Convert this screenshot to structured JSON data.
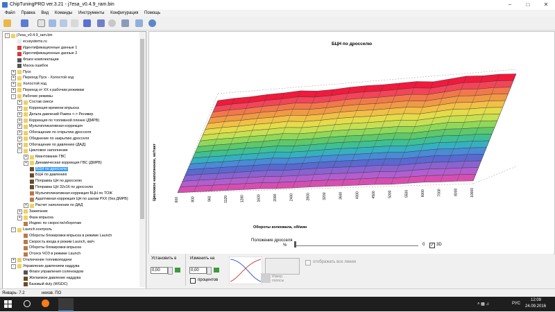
{
  "window": {
    "title": "ChipTuningPRO ver.3.21 - j7esa_v0.4.9_ram.bin"
  },
  "menu": [
    "Файл",
    "Правка",
    "Вид",
    "Команды",
    "Инструменты",
    "Конфигурация",
    "Помощь"
  ],
  "tree": [
    {
      "label": "j7esa_v0.4.9_ram.bin",
      "d": 0,
      "exp": "-",
      "icon": "folder"
    },
    {
      "label": "ecusystems.ru",
      "d": 1,
      "exp": "",
      "icon": "doc"
    },
    {
      "label": "Идентификационные данные 1",
      "d": 1,
      "exp": "",
      "icon": "grid"
    },
    {
      "label": "Идентификационные данные 2",
      "d": 1,
      "exp": "",
      "icon": "grid"
    },
    {
      "label": "Флаги комплектации",
      "d": 1,
      "exp": "",
      "icon": "flag"
    },
    {
      "label": "Маска ошибок",
      "d": 1,
      "exp": "",
      "icon": "flag"
    },
    {
      "label": "Пуск",
      "d": 1,
      "exp": "+",
      "icon": "folder"
    },
    {
      "label": "Переход Пуск - Холостой ход",
      "d": 1,
      "exp": "+",
      "icon": "folder"
    },
    {
      "label": "Холостой ход",
      "d": 1,
      "exp": "+",
      "icon": "folder"
    },
    {
      "label": "Переход от ХХ к рабочим режимам",
      "d": 1,
      "exp": "+",
      "icon": "folder"
    },
    {
      "label": "Рабочие режимы",
      "d": 1,
      "exp": "-",
      "icon": "folder"
    },
    {
      "label": "Состав смеси",
      "d": 2,
      "exp": "+",
      "icon": "folder"
    },
    {
      "label": "Коррекция времени впрыска",
      "d": 2,
      "exp": "+",
      "icon": "folder"
    },
    {
      "label": "Дельта давлений Рампа <-> Ресивер",
      "d": 2,
      "exp": "+",
      "icon": "folder"
    },
    {
      "label": "Коррекция по топливной пленке (ДМРВ)",
      "d": 2,
      "exp": "+",
      "icon": "folder"
    },
    {
      "label": "Мультипликативная коррекция",
      "d": 2,
      "exp": "+",
      "icon": "folder"
    },
    {
      "label": "Обогащение по открытию дросселя",
      "d": 2,
      "exp": "+",
      "icon": "folder"
    },
    {
      "label": "Обеднение по закрытию дросселя",
      "d": 2,
      "exp": "+",
      "icon": "folder"
    },
    {
      "label": "Обогащение по давлению (ДАД)",
      "d": 2,
      "exp": "+",
      "icon": "folder"
    },
    {
      "label": "Цикловое наполнение",
      "d": 2,
      "exp": "-",
      "icon": "folder"
    },
    {
      "label": "Квантование ГВС",
      "d": 3,
      "exp": "+",
      "icon": "folder"
    },
    {
      "label": "Динамическая коррекция ГВС (ДМРВ)",
      "d": 3,
      "exp": "+",
      "icon": "folder"
    },
    {
      "label": "БЦН по дросселю",
      "d": 3,
      "exp": "",
      "icon": "map",
      "selected": true
    },
    {
      "label": "БЦН по давлению",
      "d": 3,
      "exp": "",
      "icon": "map"
    },
    {
      "label": "Поправка ЦН по дросселю",
      "d": 3,
      "exp": "",
      "icon": "map"
    },
    {
      "label": "Поправка ЦН 32х16 по дросселю",
      "d": 3,
      "exp": "",
      "icon": "map"
    },
    {
      "label": "Мультипликативная коррекция БЦН по ТОЖ",
      "d": 3,
      "exp": "",
      "icon": "line"
    },
    {
      "label": "Адаптивная коррекция ЦН по шагам РХХ (без ДМРВ)",
      "d": 3,
      "exp": "",
      "icon": "line"
    },
    {
      "label": "Расчет наполнения по ДАД",
      "d": 3,
      "exp": "+",
      "icon": "folder"
    },
    {
      "label": "Зажигание",
      "d": 2,
      "exp": "+",
      "icon": "folder"
    },
    {
      "label": "Фаза впрыска",
      "d": 2,
      "exp": "+",
      "icon": "folder"
    },
    {
      "label": "Индекс по скорости/оборотам",
      "d": 2,
      "exp": "",
      "icon": "line"
    },
    {
      "label": "Launch контроль",
      "d": 1,
      "exp": "-",
      "icon": "folder"
    },
    {
      "label": "Обороты блокировки впрыска в режиме Launch",
      "d": 2,
      "exp": "",
      "icon": "line"
    },
    {
      "label": "Скорость входа в режим Launch, км/ч",
      "d": 2,
      "exp": "",
      "icon": "line"
    },
    {
      "label": "Обороты блокировки впрыска",
      "d": 2,
      "exp": "",
      "icon": "line"
    },
    {
      "label": "Отсеск ЧОЗ в режиме Launch",
      "d": 2,
      "exp": "",
      "icon": "line"
    },
    {
      "label": "Отключение топливоподачи",
      "d": 1,
      "exp": "+",
      "icon": "folder"
    },
    {
      "label": "Управление давлением наддува",
      "d": 1,
      "exp": "-",
      "icon": "folder"
    },
    {
      "label": "Флаги управления соленоидом",
      "d": 2,
      "exp": "",
      "icon": "flag"
    },
    {
      "label": "Желаемое давление наддува",
      "d": 2,
      "exp": "",
      "icon": "map"
    },
    {
      "label": "Базовый duty (WGDC)",
      "d": 2,
      "exp": "",
      "icon": "map"
    }
  ],
  "chart_data": {
    "type": "surface3d",
    "title": "БЦН по дросселю",
    "xlabel": "Обороты коленвала, об/мин",
    "ylabel": "Цикловое наполнение, мг/такт",
    "x": [
      "600",
      "800",
      "960",
      "1120",
      "1280",
      "1600",
      "2000",
      "2400",
      "2800",
      "3200",
      "3600",
      "4000",
      "4500",
      "5000",
      "5500",
      "6000",
      "7000",
      "8000",
      "10000"
    ],
    "series_count": 16,
    "series_colors": [
      "#f01a3c",
      "#f2455a",
      "#f2784b",
      "#f09a45",
      "#f2c046",
      "#e4dc4a",
      "#c6e053",
      "#8fd85a",
      "#5ec86a",
      "#3fbf93",
      "#36b0c0",
      "#4a8ad6",
      "#5a69d0",
      "#8a63d0",
      "#b25ecf",
      "#d64fb0"
    ]
  },
  "controls": {
    "set_label": "Установить в",
    "set_value": "0,00",
    "change_label": "Изменить на",
    "change_value": "0,00",
    "percent_label": "процентов",
    "throttle_label": "Положение дросселя",
    "throttle_unit": "%",
    "mode_label": "3D",
    "show_all_label": "отображать все линии",
    "measure_label": "Измер. полосы"
  },
  "status": {
    "left": "Январь- 7.2",
    "mode": "неизв. ПО"
  },
  "taskbar": {
    "time": "12:09",
    "date": "24.09.2016",
    "lang": "РУС"
  }
}
